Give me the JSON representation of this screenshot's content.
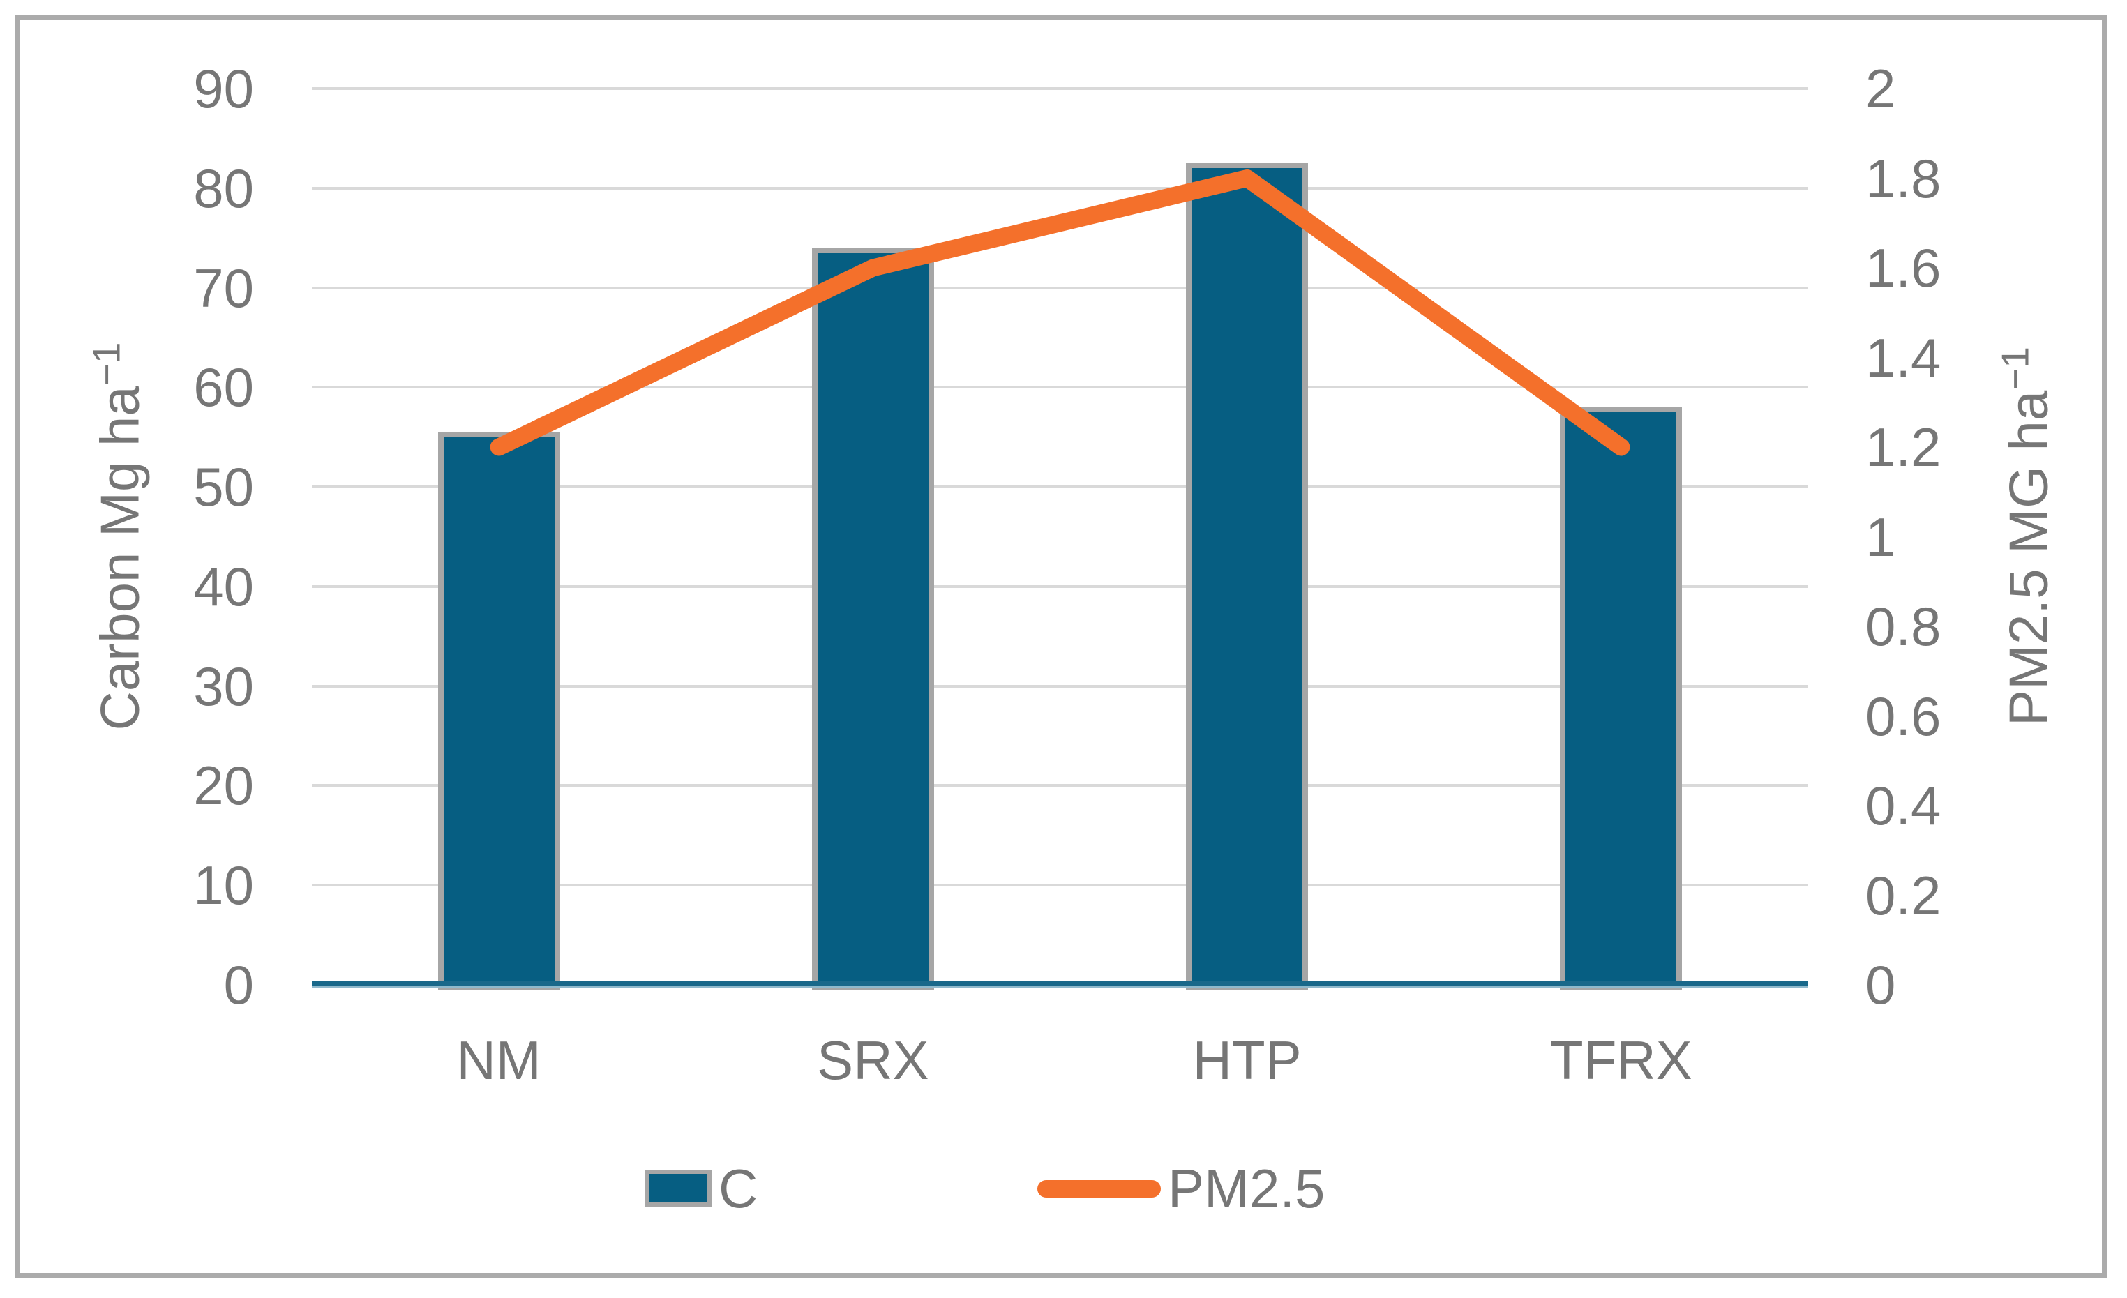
{
  "chart_data": {
    "type": "bar",
    "subtype": "combo-bar-line-dual-axis",
    "categories": [
      "NM",
      "SRX",
      "HTP",
      "TFRX"
    ],
    "series": [
      {
        "name": "C",
        "type": "bar",
        "axis": "left",
        "values": [
          55,
          73.5,
          82,
          57.5
        ]
      },
      {
        "name": "PM2.5",
        "type": "line",
        "axis": "right",
        "values": [
          1.2,
          1.6,
          1.8,
          1.2
        ]
      }
    ],
    "title": "",
    "xlabel": "",
    "axis_left": {
      "title_base": "Carbon Mg ha",
      "title_sup": "−1",
      "min": 0,
      "max": 90,
      "step": 10,
      "tick_labels": [
        "90",
        "80",
        "70",
        "60",
        "50",
        "40",
        "30",
        "20",
        "10",
        "0"
      ]
    },
    "axis_right": {
      "title_base": "PM2.5 MG ha",
      "title_sup": "−1",
      "min": 0,
      "max": 2,
      "step": 0.2,
      "tick_labels": [
        "2",
        "1.8",
        "1.6",
        "1.4",
        "1.2",
        "1",
        "0.8",
        "0.6",
        "0.4",
        "0.2",
        "0"
      ]
    },
    "legend": {
      "position": "bottom",
      "labels": [
        "C",
        "PM2.5"
      ]
    },
    "grid": {
      "horizontal": true,
      "vertical": false
    },
    "colors": {
      "bar_fill": "#065E82",
      "bar_border": "#A6A6A6",
      "line": "#F4702B",
      "gridline": "#D9D9D9",
      "text": "#767676",
      "frame_border": "#ABABAB",
      "axis_line_dark": "#19688A",
      "axis_line_light": "#8FB9CC",
      "background": "#FFFFFF"
    }
  }
}
